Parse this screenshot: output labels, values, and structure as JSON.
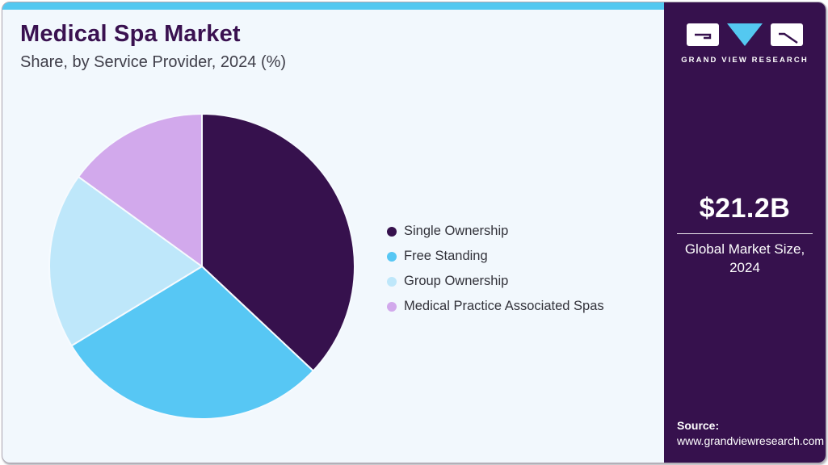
{
  "page": {
    "card_background": "#F2F8FD",
    "top_bar_color": "#54C8F0",
    "panel_background": "#36114D",
    "border_color": "#ACA7B2"
  },
  "header": {
    "title": "Medical Spa Market",
    "subtitle": "Share, by Service Provider, 2024 (%)",
    "title_color": "#3A1150",
    "subtitle_color": "#3F3E49"
  },
  "chart_data": {
    "type": "pie",
    "title": "Medical Spa Market",
    "subtitle": "Share, by Service Provider, 2024 (%)",
    "categories": [
      "Single Ownership",
      "Free Standing",
      "Group Ownership",
      "Medical Practice Associated Spas"
    ],
    "values": [
      37,
      29.3,
      18.7,
      15
    ],
    "unit": "%",
    "colors": [
      "#36114D",
      "#57C7F4",
      "#BEE7FA",
      "#D2A9EC"
    ],
    "start_angle_deg": 0,
    "direction": "clockwise",
    "legend_position": "right",
    "data_labels": false,
    "slice_gap_color": "#F6FAFE"
  },
  "legend": {
    "items": [
      {
        "label": "Single Ownership",
        "color": "#36114D"
      },
      {
        "label": "Free Standing",
        "color": "#57C7F4"
      },
      {
        "label": "Group Ownership",
        "color": "#BEE7FA"
      },
      {
        "label": "Medical Practice Associated Spas",
        "color": "#D2A9EC"
      }
    ]
  },
  "sidebar": {
    "logo": {
      "brand": "GRAND VIEW RESEARCH",
      "triangle_color": "#54C8F0",
      "block_color": "#FFFFFF",
      "glyph_color": "#36114D"
    },
    "market_size": {
      "value": "$21.2B",
      "caption_line1": "Global Market Size,",
      "caption_line2": "2024"
    },
    "source": {
      "label": "Source:",
      "url": "www.grandviewresearch.com"
    }
  }
}
